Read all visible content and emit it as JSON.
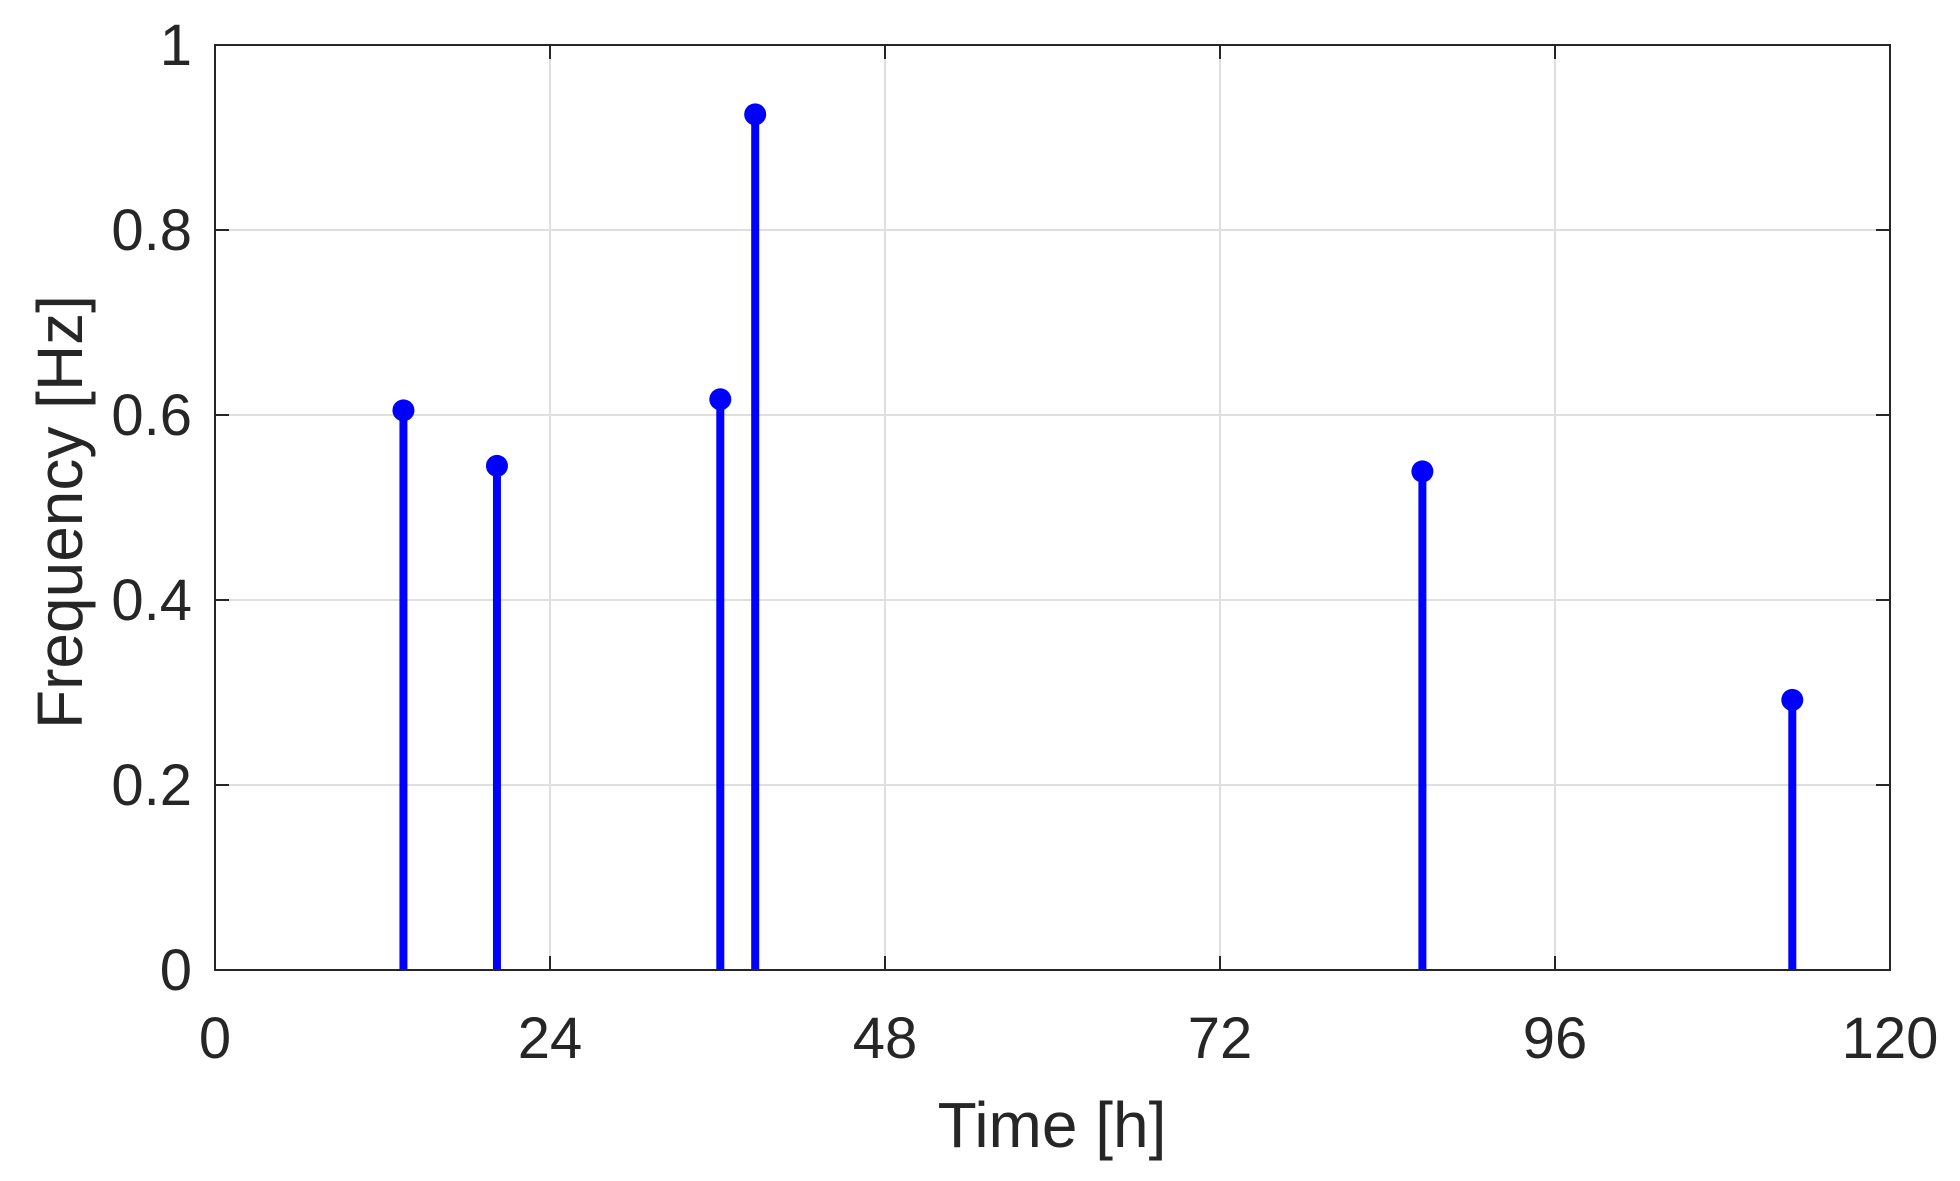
{
  "chart_data": {
    "type": "stem",
    "xlabel": "Time [h]",
    "ylabel": "Frequency [Hz]",
    "xlim": [
      0,
      120
    ],
    "ylim": [
      0,
      1
    ],
    "xticks": [
      0,
      24,
      48,
      72,
      96,
      120
    ],
    "yticks": [
      0,
      0.2,
      0.4,
      0.6,
      0.8,
      1
    ],
    "xtick_labels": [
      "0",
      "24",
      "48",
      "72",
      "96",
      "120"
    ],
    "ytick_labels": [
      "0",
      "0.2",
      "0.4",
      "0.6",
      "0.8",
      "1"
    ],
    "grid": true,
    "series": [
      {
        "color": "#0000ff",
        "x": [
          13.5,
          20.2,
          36.2,
          38.7,
          86.5,
          113
        ],
        "y": [
          0.605,
          0.545,
          0.617,
          0.925,
          0.539,
          0.292
        ]
      }
    ]
  }
}
